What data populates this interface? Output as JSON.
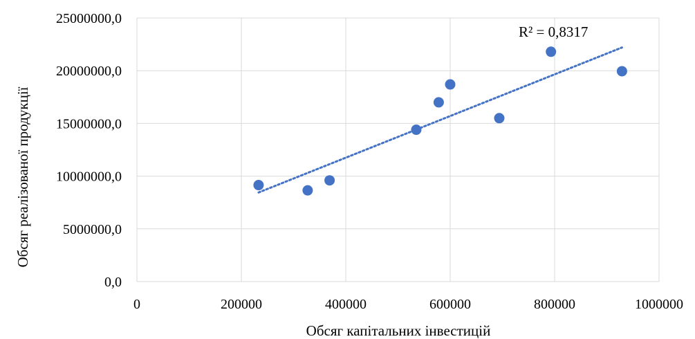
{
  "chart_data": {
    "type": "scatter",
    "title": "",
    "xlabel": "Обсяг капітальних інвестицій",
    "ylabel": "Обсяг реалізованої продукції",
    "xlim": [
      0,
      1000000
    ],
    "ylim": [
      0,
      25000000
    ],
    "x_ticks": [
      0,
      200000,
      400000,
      600000,
      800000,
      1000000
    ],
    "x_tick_labels": [
      "0",
      "200000",
      "400000",
      "600000",
      "800000",
      "1000000"
    ],
    "y_ticks": [
      0,
      5000000,
      10000000,
      15000000,
      20000000,
      25000000
    ],
    "y_tick_labels": [
      "0,0",
      "5000000,0",
      "10000000,0",
      "15000000,0",
      "20000000,0",
      "25000000,0"
    ],
    "grid": true,
    "legend": "none",
    "point_color": "#4472c4",
    "trendline_color": "#4472c4",
    "series": [
      {
        "x": [
          233000,
          327000,
          369000,
          535000,
          578000,
          600000,
          694000,
          793000,
          929000
        ],
        "y": [
          9150000,
          8650000,
          9600000,
          14400000,
          17000000,
          18700000,
          15500000,
          21800000,
          19950000
        ]
      }
    ],
    "trendline": {
      "type": "linear",
      "x_range": [
        233000,
        929000
      ],
      "y_range": [
        8450000,
        22200000
      ]
    },
    "annotation": "R² = 0,8317"
  }
}
